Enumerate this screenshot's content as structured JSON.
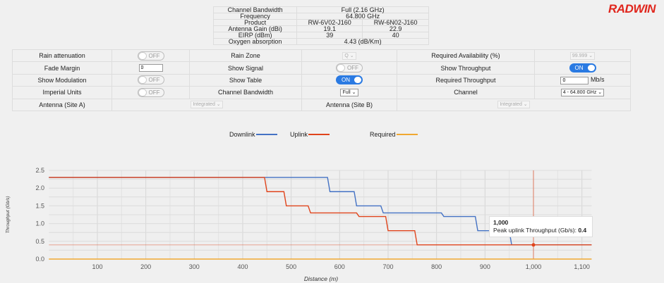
{
  "logo": "RADWIN",
  "info": {
    "rows": [
      {
        "label": "Channel Bandwidth",
        "value": "Full (2.16 GHz)"
      },
      {
        "label": "Frequency",
        "value": "64.800 GHz"
      },
      {
        "label": "Product",
        "a": "RW-6V02-J160",
        "b": "RW-6N02-J160"
      },
      {
        "label": "Antenna Gain (dBi)",
        "a": "19.1",
        "b": "22.9"
      },
      {
        "label": "EIRP (dBm)",
        "a": "39",
        "b": "40"
      },
      {
        "label": "Oxygen absorption",
        "value": "4.43 (dB/Km)"
      }
    ]
  },
  "controls": {
    "rain_attenuation": {
      "label": "Rain attenuation",
      "state": "OFF"
    },
    "rain_zone": {
      "label": "Rain Zone",
      "value": "Q"
    },
    "required_availability": {
      "label": "Required Availability (%)",
      "value": "99.999"
    },
    "fade_margin": {
      "label": "Fade Margin",
      "value": "0"
    },
    "show_signal": {
      "label": "Show Signal",
      "state": "OFF"
    },
    "show_throughput": {
      "label": "Show Throughput",
      "state": "ON"
    },
    "show_modulation": {
      "label": "Show Modulation",
      "state": "OFF"
    },
    "show_table": {
      "label": "Show Table",
      "state": "ON"
    },
    "required_throughput": {
      "label": "Required Throughput",
      "value": "0",
      "unit": "Mb/s"
    },
    "imperial_units": {
      "label": "Imperial Units",
      "state": "OFF"
    },
    "channel_bandwidth": {
      "label": "Channel Bandwidth",
      "value": "Full"
    },
    "channel": {
      "label": "Channel",
      "value": "4 - 64.800 GHz"
    },
    "antenna_a": {
      "label": "Antenna (Site A)",
      "value": "Integrated"
    },
    "antenna_b": {
      "label": "Antenna (Site B)",
      "value": "Integrated"
    }
  },
  "tooltip": {
    "title": "1,000",
    "label": "Peak uplink Throughput (Gb/s): ",
    "value": "0.4"
  },
  "chart_data": {
    "type": "line",
    "xlabel": "Distance (m)",
    "ylabel": "Throughput (Gb/s)",
    "xlim": [
      0,
      1120
    ],
    "ylim": [
      0,
      2.5
    ],
    "xticks": [
      "100",
      "200",
      "300",
      "400",
      "500",
      "600",
      "700",
      "800",
      "900",
      "1,000",
      "1,100"
    ],
    "yticks": [
      "0.0",
      "0.5",
      "1.0",
      "1.5",
      "2.0",
      "2.5"
    ],
    "grid": true,
    "legend": "top",
    "series": [
      {
        "name": "Downlink",
        "color": "#4472c4",
        "points": [
          [
            0,
            2.3
          ],
          [
            575,
            2.3
          ],
          [
            580,
            1.9
          ],
          [
            630,
            1.9
          ],
          [
            635,
            1.5
          ],
          [
            685,
            1.5
          ],
          [
            690,
            1.3
          ],
          [
            810,
            1.3
          ],
          [
            815,
            1.2
          ],
          [
            880,
            1.2
          ],
          [
            885,
            0.8
          ],
          [
            950,
            0.8
          ],
          [
            955,
            0.4
          ],
          [
            1120,
            0.4
          ]
        ]
      },
      {
        "name": "Uplink",
        "color": "#e0441c",
        "points": [
          [
            0,
            2.3
          ],
          [
            445,
            2.3
          ],
          [
            450,
            1.9
          ],
          [
            485,
            1.9
          ],
          [
            490,
            1.5
          ],
          [
            535,
            1.5
          ],
          [
            540,
            1.3
          ],
          [
            635,
            1.3
          ],
          [
            640,
            1.2
          ],
          [
            695,
            1.2
          ],
          [
            700,
            0.8
          ],
          [
            755,
            0.8
          ],
          [
            760,
            0.4
          ],
          [
            1120,
            0.4
          ]
        ]
      },
      {
        "name": "Required",
        "color": "#f0a830",
        "points": [
          [
            0,
            0
          ],
          [
            1120,
            0
          ]
        ]
      }
    ],
    "highlight": {
      "x": 1000,
      "y": 0.4,
      "series": "Uplink"
    }
  }
}
